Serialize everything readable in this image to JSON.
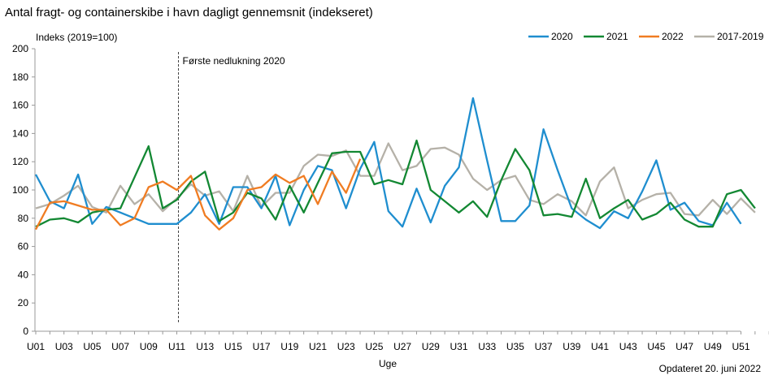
{
  "chart_data": {
    "type": "line",
    "title": "Antal fragt- og containerskibe i havn dagligt gennemsnit (indekseret)",
    "ylabel": "Indeks  (2019=100)",
    "xlabel": "Uge",
    "footnote": "Opdateret 20. juni 2022",
    "annotation": {
      "text": "Første nedlukning  2020",
      "x": 11
    },
    "ylim": [
      0,
      200
    ],
    "yticks": [
      0,
      20,
      40,
      60,
      80,
      100,
      120,
      140,
      160,
      180,
      200
    ],
    "xlim": [
      1,
      53
    ],
    "xtick_labels": [
      "U01",
      "U03",
      "U05",
      "U07",
      "U09",
      "U11",
      "U13",
      "U15",
      "U17",
      "U19",
      "U21",
      "U23",
      "U25",
      "U27",
      "U29",
      "U31",
      "U33",
      "U35",
      "U37",
      "U39",
      "U41",
      "U43",
      "U45",
      "U47",
      "U49",
      "U51"
    ],
    "legend_position": "top-right",
    "grid": false,
    "series": [
      {
        "name": "2020",
        "color": "#1f8ecf",
        "x": [
          1,
          2,
          3,
          4,
          5,
          6,
          7,
          8,
          9,
          10,
          11,
          12,
          13,
          14,
          15,
          16,
          17,
          18,
          19,
          20,
          21,
          22,
          23,
          24,
          25,
          26,
          27,
          28,
          29,
          30,
          31,
          32,
          33,
          34,
          35,
          36,
          37,
          38,
          39,
          40,
          41,
          42,
          43,
          44,
          45,
          46,
          47,
          48,
          49,
          50,
          51,
          52
        ],
        "values": [
          111,
          92,
          87,
          111,
          76,
          88,
          84,
          80,
          76,
          76,
          76,
          84,
          97,
          76,
          102,
          102,
          87,
          110,
          75,
          100,
          117,
          114,
          87,
          115,
          134,
          85,
          74,
          101,
          77,
          103,
          116,
          165,
          121,
          78,
          78,
          89,
          143,
          114,
          87,
          79,
          73,
          85,
          80,
          99,
          121,
          86,
          91,
          78,
          75,
          91,
          76,
          null
        ]
      },
      {
        "name": "2021",
        "color": "#138833",
        "x": [
          1,
          2,
          3,
          4,
          5,
          6,
          7,
          8,
          9,
          10,
          11,
          12,
          13,
          14,
          15,
          16,
          17,
          18,
          19,
          20,
          21,
          22,
          23,
          24,
          25,
          26,
          27,
          28,
          29,
          30,
          31,
          32,
          33,
          34,
          35,
          36,
          37,
          38,
          39,
          40,
          41,
          42,
          43,
          44,
          45,
          46,
          47,
          48,
          49,
          50,
          51,
          52
        ],
        "values": [
          74,
          79,
          80,
          77,
          84,
          86,
          87,
          109,
          131,
          87,
          93,
          106,
          113,
          78,
          84,
          98,
          94,
          79,
          103,
          84,
          105,
          126,
          127,
          127,
          104,
          107,
          104,
          135,
          100,
          92,
          84,
          92,
          81,
          107,
          129,
          114,
          82,
          83,
          81,
          108,
          80,
          87,
          93,
          79,
          83,
          91,
          79,
          74,
          74,
          97,
          100,
          87
        ]
      },
      {
        "name": "2022",
        "color": "#f07c22",
        "x": [
          1,
          2,
          3,
          4,
          5,
          6,
          7,
          8,
          9,
          10,
          11,
          12,
          13,
          14,
          15,
          16,
          17,
          18,
          19,
          20,
          21,
          22,
          23,
          24
        ],
        "values": [
          72,
          91,
          92,
          89,
          86,
          86,
          75,
          80,
          102,
          106,
          100,
          110,
          82,
          72,
          80,
          100,
          102,
          111,
          105,
          110,
          90,
          113,
          98,
          122
        ]
      },
      {
        "name": "2017-2019",
        "color": "#b5b1a8",
        "x": [
          1,
          2,
          3,
          4,
          5,
          6,
          7,
          8,
          9,
          10,
          11,
          12,
          13,
          14,
          15,
          16,
          17,
          18,
          19,
          20,
          21,
          22,
          23,
          24,
          25,
          26,
          27,
          28,
          29,
          30,
          31,
          32,
          33,
          34,
          35,
          36,
          37,
          38,
          39,
          40,
          41,
          42,
          43,
          44,
          45,
          46,
          47,
          48,
          49,
          50,
          51,
          52
        ],
        "values": [
          87,
          90,
          96,
          103,
          88,
          84,
          103,
          90,
          97,
          85,
          94,
          104,
          96,
          99,
          85,
          110,
          88,
          98,
          98,
          117,
          125,
          124,
          128,
          110,
          110,
          133,
          114,
          117,
          129,
          130,
          125,
          108,
          100,
          107,
          110,
          93,
          90,
          97,
          92,
          82,
          106,
          116,
          87,
          93,
          97,
          98,
          83,
          82,
          93,
          83,
          94,
          84
        ]
      }
    ]
  }
}
